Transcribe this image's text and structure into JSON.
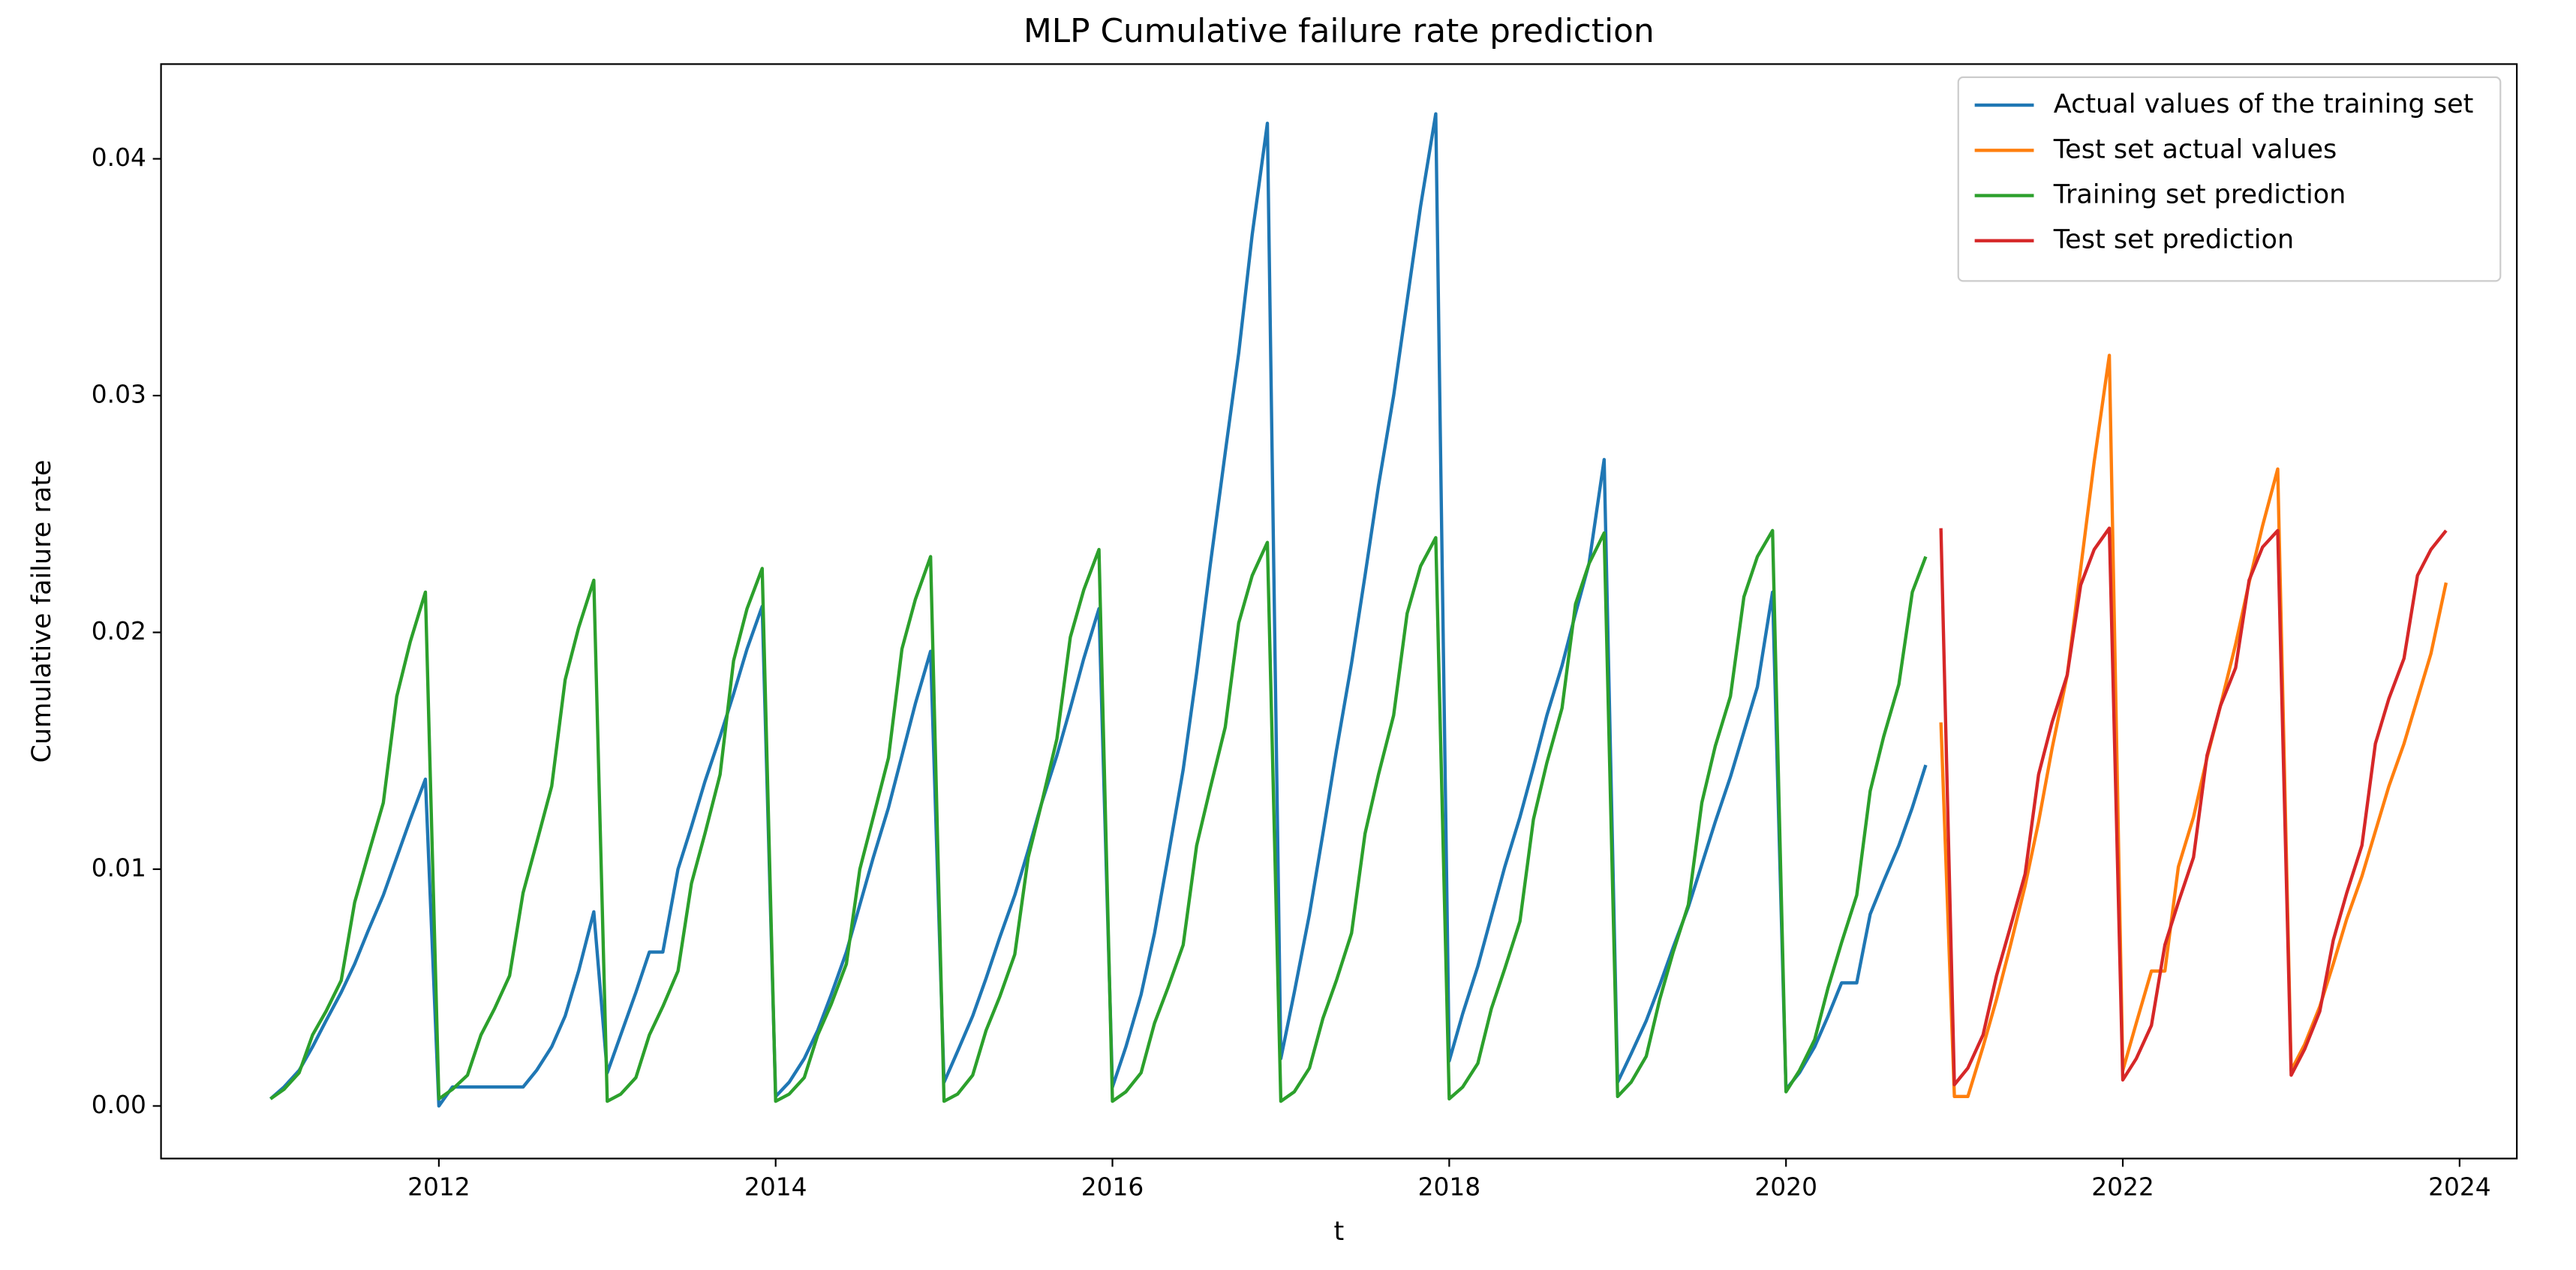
{
  "chart_data": {
    "type": "line",
    "title": "MLP Cumulative failure rate prediction",
    "xlabel": "t",
    "ylabel": "Cumulative failure rate",
    "xlim": [
      2010.35,
      2024.34
    ],
    "xticks": [
      2012,
      2014,
      2016,
      2018,
      2020,
      2022,
      2024
    ],
    "ylim": [
      -0.00222,
      0.044
    ],
    "yticks": [
      {
        "value": 0,
        "label": "0.00"
      },
      0.01,
      0.02,
      0.03,
      0.04
    ],
    "grid": false,
    "legend": "upper right",
    "series": [
      {
        "name": "Actual values of the training set",
        "color": "#1f77b4",
        "x": [
          2011,
          2011.08,
          2011.17,
          2011.25,
          2011.33,
          2011.42,
          2011.5,
          2011.58,
          2011.67,
          2011.75,
          2011.83,
          2011.92,
          2012,
          2012.08,
          2012.17,
          2012.25,
          2012.33,
          2012.42,
          2012.5,
          2012.58,
          2012.67,
          2012.75,
          2012.83,
          2012.92,
          2013,
          2013.08,
          2013.17,
          2013.25,
          2013.33,
          2013.42,
          2013.5,
          2013.58,
          2013.67,
          2013.75,
          2013.83,
          2013.92,
          2014,
          2014.08,
          2014.17,
          2014.25,
          2014.33,
          2014.42,
          2014.5,
          2014.58,
          2014.67,
          2014.75,
          2014.83,
          2014.92,
          2015,
          2015.08,
          2015.17,
          2015.25,
          2015.33,
          2015.42,
          2015.5,
          2015.58,
          2015.67,
          2015.75,
          2015.83,
          2015.92,
          2016,
          2016.08,
          2016.17,
          2016.25,
          2016.33,
          2016.42,
          2016.5,
          2016.58,
          2016.67,
          2016.75,
          2016.83,
          2016.92,
          2017,
          2017.08,
          2017.17,
          2017.25,
          2017.33,
          2017.42,
          2017.5,
          2017.58,
          2017.67,
          2017.75,
          2017.83,
          2017.92,
          2018,
          2018.08,
          2018.17,
          2018.25,
          2018.33,
          2018.42,
          2018.5,
          2018.58,
          2018.67,
          2018.75,
          2018.83,
          2018.92,
          2019,
          2019.08,
          2019.17,
          2019.25,
          2019.33,
          2019.42,
          2019.5,
          2019.58,
          2019.67,
          2019.75,
          2019.83,
          2019.92,
          2020,
          2020.08,
          2020.17,
          2020.25,
          2020.33,
          2020.42,
          2020.5,
          2020.58,
          2020.67,
          2020.75,
          2020.83
        ],
        "values": [
          0.0003,
          0.0008,
          0.0015,
          0.0025,
          0.0036,
          0.0048,
          0.006,
          0.0074,
          0.0089,
          0.0105,
          0.0121,
          0.0138,
          0.0,
          0.0008,
          0.0008,
          0.0008,
          0.0008,
          0.0008,
          0.0008,
          0.0015,
          0.0025,
          0.0038,
          0.0057,
          0.0082,
          0.0014,
          0.003,
          0.0048,
          0.0065,
          0.0065,
          0.01,
          0.0118,
          0.0137,
          0.0156,
          0.0174,
          0.0193,
          0.0211,
          0.0004,
          0.001,
          0.002,
          0.0032,
          0.0047,
          0.0065,
          0.0085,
          0.0105,
          0.0126,
          0.0148,
          0.017,
          0.0192,
          0.001,
          0.0023,
          0.0038,
          0.0054,
          0.0071,
          0.0089,
          0.0108,
          0.0128,
          0.0148,
          0.0168,
          0.0189,
          0.021,
          0.0008,
          0.0025,
          0.0047,
          0.0073,
          0.0105,
          0.0142,
          0.0183,
          0.0228,
          0.0276,
          0.0318,
          0.0368,
          0.0415,
          0.002,
          0.0048,
          0.0081,
          0.0115,
          0.015,
          0.0187,
          0.0224,
          0.0262,
          0.03,
          0.034,
          0.038,
          0.0419,
          0.0019,
          0.0039,
          0.0059,
          0.008,
          0.0101,
          0.0122,
          0.0143,
          0.0165,
          0.0186,
          0.0208,
          0.0229,
          0.0273,
          0.001,
          0.0022,
          0.0036,
          0.0051,
          0.0067,
          0.0084,
          0.0102,
          0.012,
          0.0139,
          0.0158,
          0.0177,
          0.0217,
          0.0007,
          0.0014,
          0.0025,
          0.0038,
          0.0052,
          0.0052,
          0.0081,
          0.0095,
          0.011,
          0.0126,
          0.0144
        ]
      },
      {
        "name": "Test set actual values",
        "color": "#ff7f0e",
        "x": [
          2020.92,
          2021,
          2021.08,
          2021.17,
          2021.25,
          2021.33,
          2021.42,
          2021.5,
          2021.58,
          2021.67,
          2021.75,
          2021.83,
          2021.92,
          2022,
          2022.08,
          2022.17,
          2022.25,
          2022.33,
          2022.42,
          2022.5,
          2022.58,
          2022.67,
          2022.75,
          2022.83,
          2022.92,
          2023,
          2023.08,
          2023.17,
          2023.25,
          2023.33,
          2023.42,
          2023.5,
          2023.58,
          2023.67,
          2023.75,
          2023.83,
          2023.92
        ],
        "values": [
          0.0162,
          0.0004,
          0.0004,
          0.0025,
          0.0045,
          0.0067,
          0.0093,
          0.012,
          0.0151,
          0.0182,
          0.0227,
          0.0272,
          0.0317,
          0.0015,
          0.0035,
          0.0057,
          0.0057,
          0.0101,
          0.0122,
          0.0147,
          0.0169,
          0.0195,
          0.0221,
          0.0245,
          0.0269,
          0.0015,
          0.0026,
          0.0042,
          0.006,
          0.0079,
          0.0097,
          0.0116,
          0.0135,
          0.0153,
          0.0172,
          0.0191,
          0.0221
        ]
      },
      {
        "name": "Training set prediction",
        "color": "#2ca02c",
        "x": [
          2011,
          2011.08,
          2011.17,
          2011.25,
          2011.33,
          2011.42,
          2011.5,
          2011.58,
          2011.67,
          2011.75,
          2011.83,
          2011.92,
          2012,
          2012.08,
          2012.17,
          2012.25,
          2012.33,
          2012.42,
          2012.5,
          2012.58,
          2012.67,
          2012.75,
          2012.83,
          2012.92,
          2013,
          2013.08,
          2013.17,
          2013.25,
          2013.33,
          2013.42,
          2013.5,
          2013.58,
          2013.67,
          2013.75,
          2013.83,
          2013.92,
          2014,
          2014.08,
          2014.17,
          2014.25,
          2014.33,
          2014.42,
          2014.5,
          2014.58,
          2014.67,
          2014.75,
          2014.83,
          2014.92,
          2015,
          2015.08,
          2015.17,
          2015.25,
          2015.33,
          2015.42,
          2015.5,
          2015.58,
          2015.67,
          2015.75,
          2015.83,
          2015.92,
          2016,
          2016.08,
          2016.17,
          2016.25,
          2016.33,
          2016.42,
          2016.5,
          2016.58,
          2016.67,
          2016.75,
          2016.83,
          2016.92,
          2017,
          2017.08,
          2017.17,
          2017.25,
          2017.33,
          2017.42,
          2017.5,
          2017.58,
          2017.67,
          2017.75,
          2017.83,
          2017.92,
          2018,
          2018.08,
          2018.17,
          2018.25,
          2018.33,
          2018.42,
          2018.5,
          2018.58,
          2018.67,
          2018.75,
          2018.83,
          2018.92,
          2019,
          2019.08,
          2019.17,
          2019.25,
          2019.33,
          2019.42,
          2019.5,
          2019.58,
          2019.67,
          2019.75,
          2019.83,
          2019.92,
          2020,
          2020.08,
          2020.17,
          2020.25,
          2020.33,
          2020.42,
          2020.5,
          2020.58,
          2020.67,
          2020.75,
          2020.83
        ],
        "values": [
          0.0003,
          0.0007,
          0.0014,
          0.003,
          0.004,
          0.0053,
          0.0086,
          0.0106,
          0.0128,
          0.0173,
          0.0196,
          0.0217,
          0.0003,
          0.0007,
          0.0013,
          0.003,
          0.0041,
          0.0055,
          0.009,
          0.0111,
          0.0135,
          0.018,
          0.0202,
          0.0222,
          0.0002,
          0.0005,
          0.0012,
          0.003,
          0.0042,
          0.0057,
          0.0094,
          0.0115,
          0.014,
          0.0188,
          0.021,
          0.0227,
          0.0002,
          0.0005,
          0.0012,
          0.003,
          0.0043,
          0.006,
          0.01,
          0.0122,
          0.0147,
          0.0193,
          0.0214,
          0.0232,
          0.0002,
          0.0005,
          0.0013,
          0.0032,
          0.0046,
          0.0064,
          0.0105,
          0.0128,
          0.0155,
          0.0198,
          0.0218,
          0.0235,
          0.0002,
          0.0006,
          0.0014,
          0.0035,
          0.005,
          0.0068,
          0.011,
          0.0134,
          0.016,
          0.0204,
          0.0224,
          0.0238,
          0.0002,
          0.0006,
          0.0016,
          0.0037,
          0.0053,
          0.0073,
          0.0115,
          0.014,
          0.0165,
          0.0208,
          0.0228,
          0.024,
          0.0003,
          0.0008,
          0.0018,
          0.0041,
          0.0058,
          0.0078,
          0.0121,
          0.0145,
          0.0168,
          0.0212,
          0.0229,
          0.0242,
          0.0004,
          0.001,
          0.0021,
          0.0045,
          0.0065,
          0.0085,
          0.0128,
          0.0152,
          0.0173,
          0.0215,
          0.0232,
          0.0243,
          0.0006,
          0.0015,
          0.0028,
          0.005,
          0.0069,
          0.0089,
          0.0133,
          0.0156,
          0.0178,
          0.0217,
          0.0232
        ]
      },
      {
        "name": "Test set prediction",
        "color": "#d62728",
        "x": [
          2020.92,
          2021,
          2021.08,
          2021.17,
          2021.25,
          2021.33,
          2021.42,
          2021.5,
          2021.58,
          2021.67,
          2021.75,
          2021.83,
          2021.92,
          2022,
          2022.08,
          2022.17,
          2022.25,
          2022.33,
          2022.42,
          2022.5,
          2022.58,
          2022.67,
          2022.75,
          2022.83,
          2022.92,
          2023,
          2023.08,
          2023.17,
          2023.25,
          2023.33,
          2023.42,
          2023.5,
          2023.58,
          2023.67,
          2023.75,
          2023.83,
          2023.92
        ],
        "values": [
          0.0244,
          0.0009,
          0.0016,
          0.003,
          0.0055,
          0.0075,
          0.0098,
          0.014,
          0.0162,
          0.0182,
          0.022,
          0.0235,
          0.0244,
          0.0011,
          0.002,
          0.0034,
          0.0068,
          0.0086,
          0.0105,
          0.0148,
          0.0169,
          0.0185,
          0.0222,
          0.0236,
          0.0243,
          0.0013,
          0.0024,
          0.004,
          0.007,
          0.009,
          0.011,
          0.0153,
          0.0172,
          0.0189,
          0.0224,
          0.0235,
          0.0243
        ]
      }
    ]
  }
}
